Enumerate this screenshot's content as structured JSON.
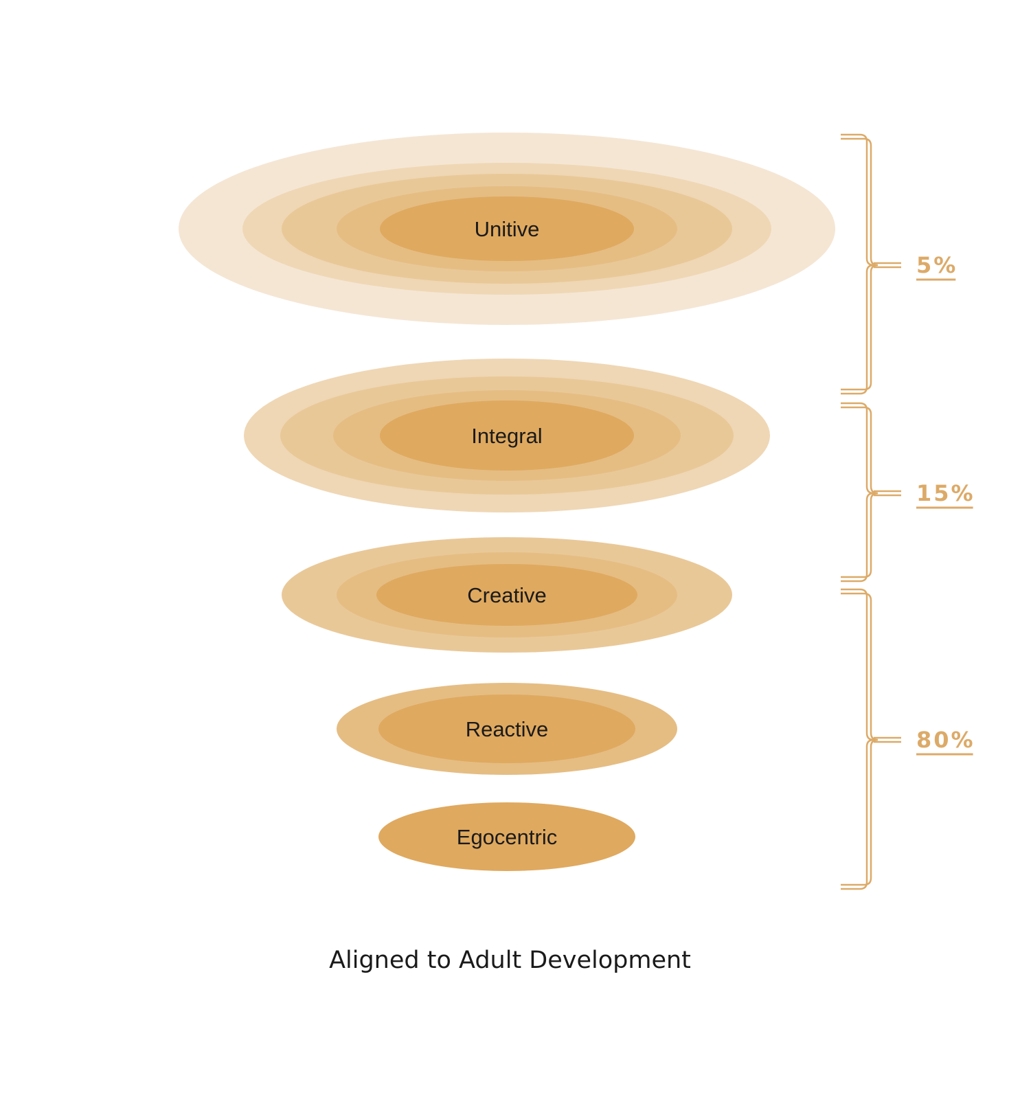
{
  "colors": {
    "ring1": "#f5e6d4",
    "ring2": "#efd7b5",
    "ring3": "#e9c898",
    "ring4": "#e5bd83",
    "core": "#dfa95f",
    "bracket": "#dcaa68",
    "text": "#1a1a1a"
  },
  "stages": [
    {
      "label": "Unitive",
      "rings": 5
    },
    {
      "label": "Integral",
      "rings": 4
    },
    {
      "label": "Creative",
      "rings": 3
    },
    {
      "label": "Reactive",
      "rings": 2
    },
    {
      "label": "Egocentric",
      "rings": 1
    }
  ],
  "brackets": [
    {
      "percent": "5%"
    },
    {
      "percent": "15%"
    },
    {
      "percent": "80%"
    }
  ],
  "caption": "Aligned to Adult Development"
}
